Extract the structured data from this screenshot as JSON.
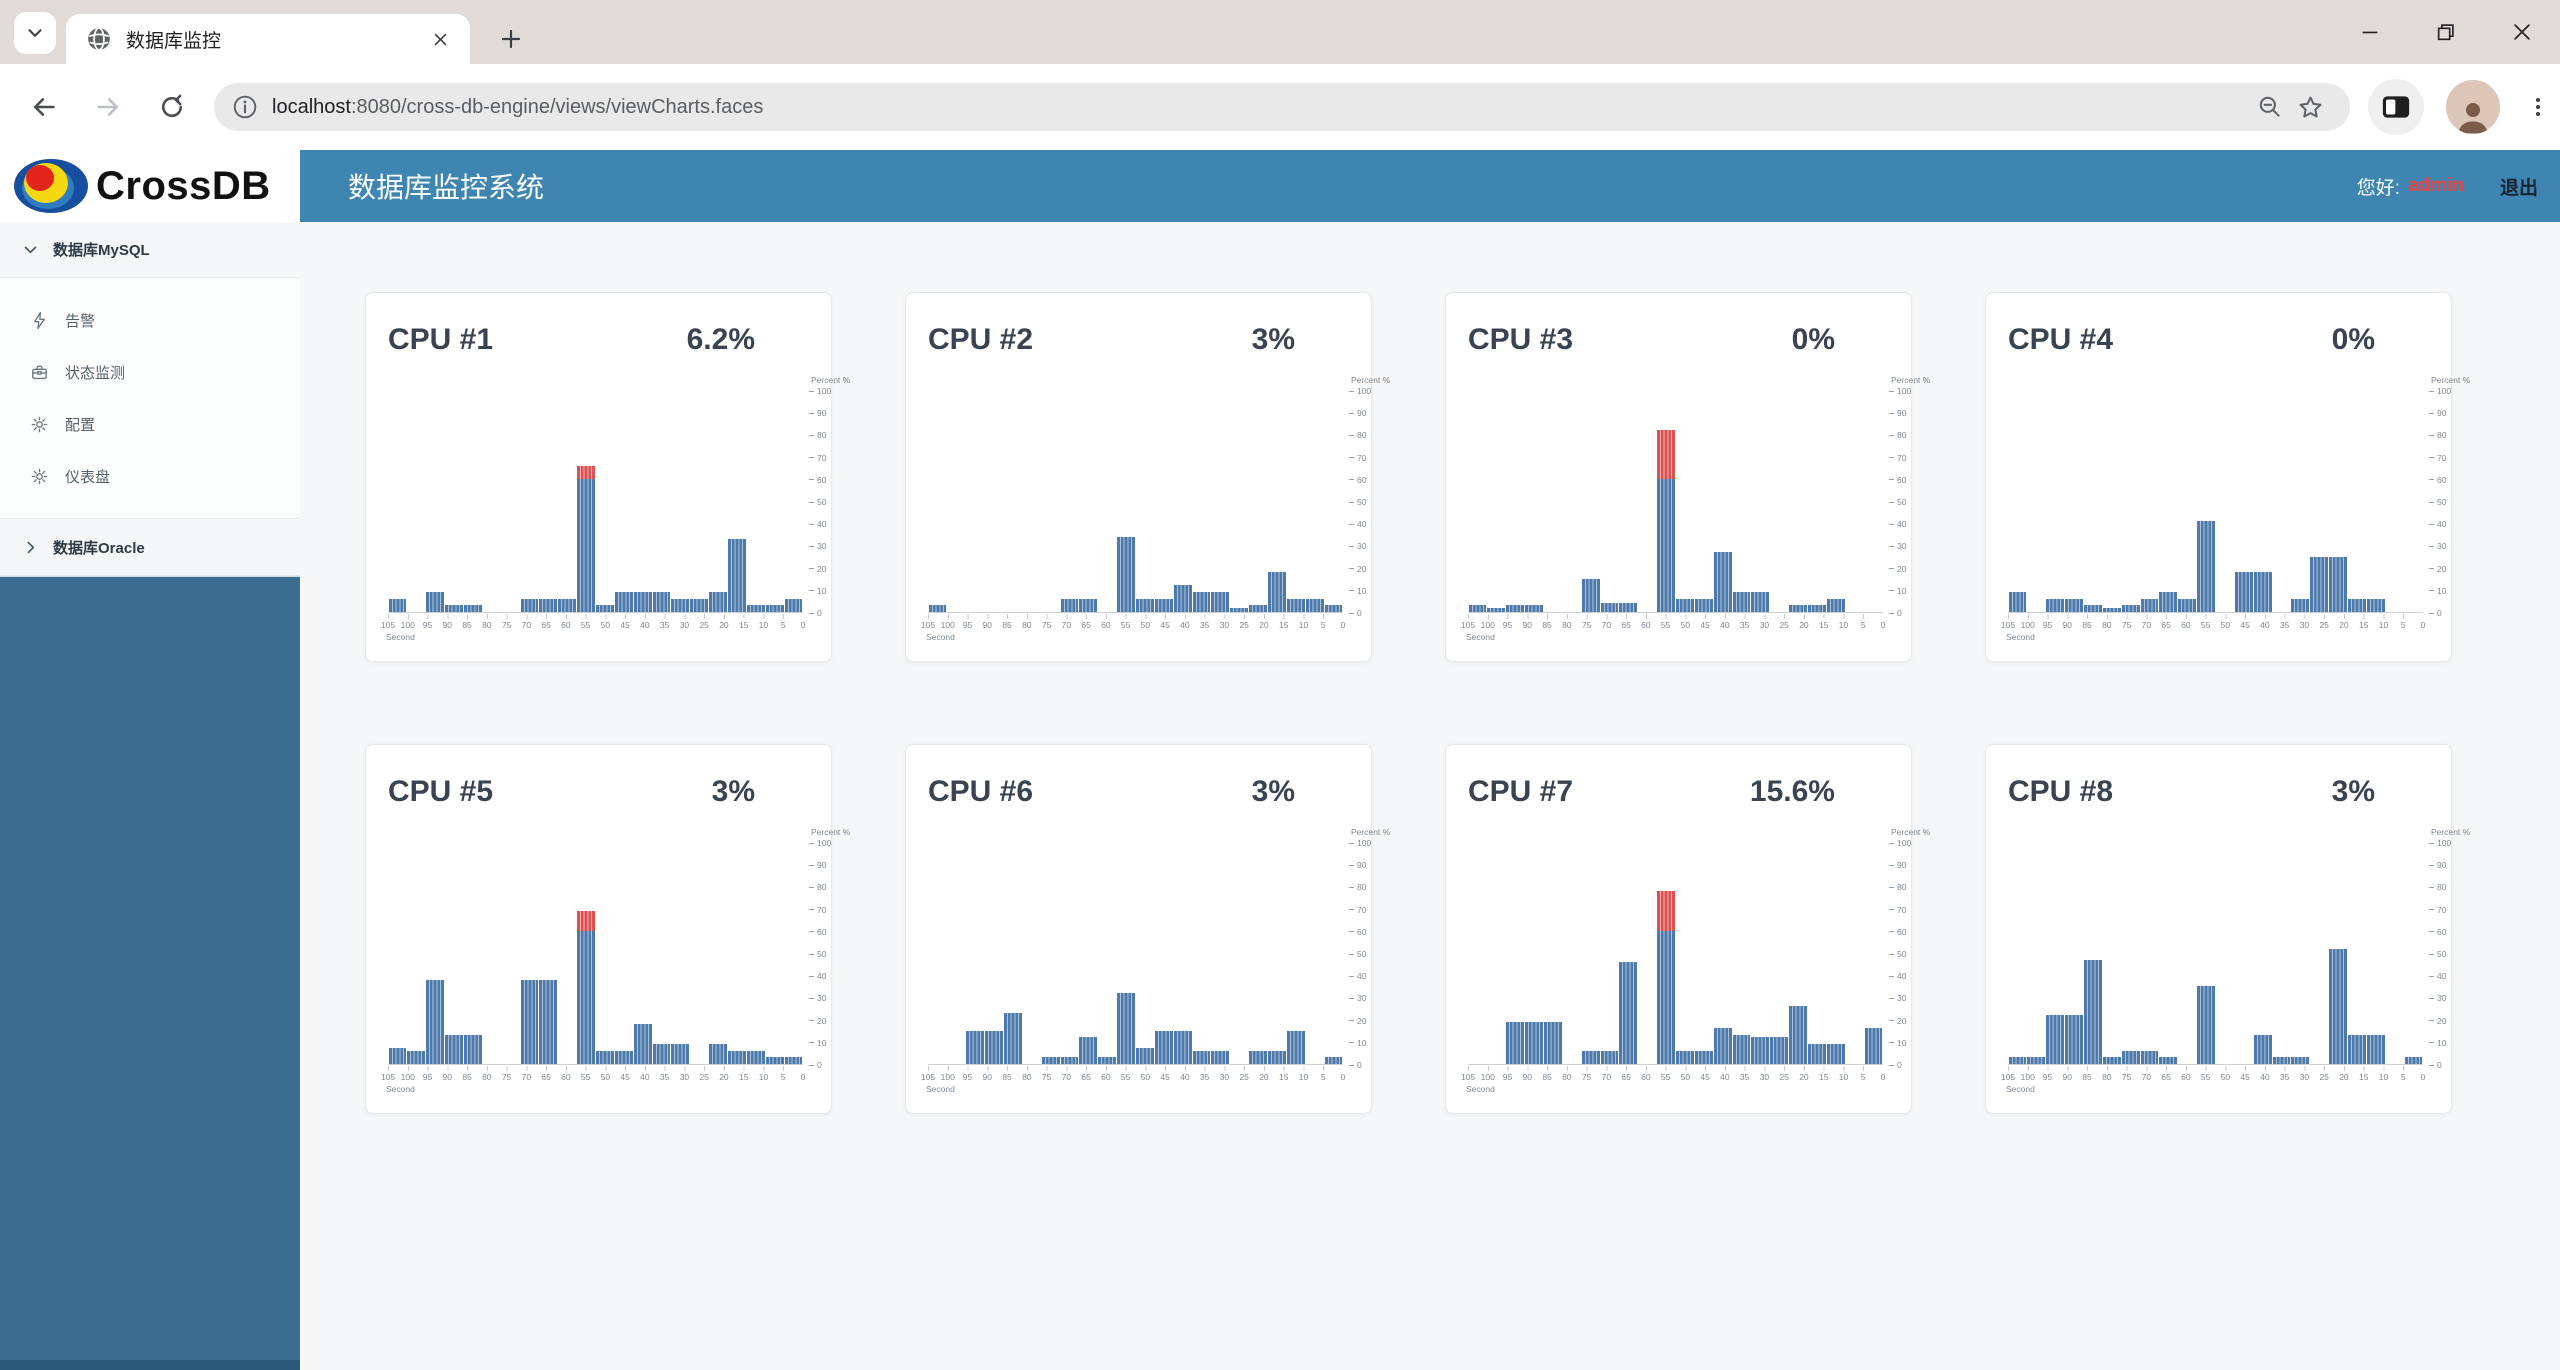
{
  "browser": {
    "tab_title": "数据库监控",
    "url_host": "localhost",
    "url_rest": ":8080/cross-db-engine/views/viewCharts.faces",
    "icons": {
      "tab_search": "chevron-down-icon",
      "tab_favicon": "globe-icon",
      "tab_close": "close-icon",
      "new_tab": "plus-icon",
      "window_controls": [
        "minimize-icon",
        "restore-icon",
        "close-icon"
      ],
      "toolbar": [
        "back-arrow-icon",
        "forward-arrow-icon",
        "reload-icon",
        "info-icon",
        "zoom-out-icon",
        "bookmark-star-icon",
        "side-panel-icon",
        "profile-avatar",
        "kebab-menu-icon"
      ]
    }
  },
  "header": {
    "brand": "CrossDB",
    "title": "数据库监控系统",
    "greeting_label": "您好:",
    "username": "admin",
    "logout_label": "退出",
    "header_color": "#3e85b2",
    "username_color": "#e8433f"
  },
  "sidebar": {
    "fill_color": "#3c6d90",
    "groups": [
      {
        "label": "数据库MySQL",
        "expanded": true,
        "icon": "chevron-down-icon",
        "items": [
          {
            "label": "告警",
            "icon": "alert-lightning-icon"
          },
          {
            "label": "状态监测",
            "icon": "status-briefcase-icon"
          },
          {
            "label": "配置",
            "icon": "config-gear-icon"
          },
          {
            "label": "仪表盘",
            "icon": "dashboard-gear-icon"
          }
        ]
      },
      {
        "label": "数据库Oracle",
        "expanded": false,
        "icon": "chevron-right-icon",
        "items": []
      }
    ]
  },
  "chart_data": [
    {
      "type": "bar",
      "title": "CPU #1",
      "current": "6.2%",
      "xlabel": "Second",
      "ylabel": "Percent %",
      "x_first": 105,
      "x_last": 0,
      "x_step": 5,
      "ylim": [
        0,
        100
      ],
      "y_tick_step": 10,
      "overload_threshold": 60,
      "bar_color": "#4d79ab",
      "overload_color": "#dc5252",
      "values": [
        6,
        0,
        9,
        3,
        3,
        0,
        0,
        6,
        6,
        6,
        66,
        3,
        9,
        9,
        9,
        6,
        6,
        9,
        33,
        3,
        3,
        6
      ]
    },
    {
      "type": "bar",
      "title": "CPU #2",
      "current": "3%",
      "xlabel": "Second",
      "ylabel": "Percent %",
      "x_first": 105,
      "x_last": 0,
      "x_step": 5,
      "ylim": [
        0,
        100
      ],
      "y_tick_step": 10,
      "overload_threshold": 60,
      "bar_color": "#4d79ab",
      "overload_color": "#dc5252",
      "values": [
        3,
        0,
        0,
        0,
        0,
        0,
        0,
        6,
        6,
        0,
        34,
        6,
        6,
        12,
        9,
        9,
        2,
        3,
        18,
        6,
        6,
        3
      ]
    },
    {
      "type": "bar",
      "title": "CPU #3",
      "current": "0%",
      "xlabel": "Second",
      "ylabel": "Percent %",
      "x_first": 105,
      "x_last": 0,
      "x_step": 5,
      "ylim": [
        0,
        100
      ],
      "y_tick_step": 10,
      "overload_threshold": 60,
      "bar_color": "#4d79ab",
      "overload_color": "#dc5252",
      "values": [
        3,
        2,
        3,
        3,
        0,
        0,
        15,
        4,
        4,
        0,
        82,
        6,
        6,
        27,
        9,
        9,
        0,
        3,
        3,
        6,
        0,
        0
      ]
    },
    {
      "type": "bar",
      "title": "CPU #4",
      "current": "0%",
      "xlabel": "Second",
      "ylabel": "Percent %",
      "x_first": 105,
      "x_last": 0,
      "x_step": 5,
      "ylim": [
        0,
        100
      ],
      "y_tick_step": 10,
      "overload_threshold": 60,
      "bar_color": "#4d79ab",
      "overload_color": "#dc5252",
      "values": [
        9,
        0,
        6,
        6,
        3,
        2,
        3,
        6,
        9,
        6,
        41,
        0,
        18,
        18,
        0,
        6,
        25,
        25,
        6,
        6,
        0,
        0
      ]
    },
    {
      "type": "bar",
      "title": "CPU #5",
      "current": "3%",
      "xlabel": "Second",
      "ylabel": "Percent %",
      "x_first": 105,
      "x_last": 0,
      "x_step": 5,
      "ylim": [
        0,
        100
      ],
      "y_tick_step": 10,
      "overload_threshold": 60,
      "bar_color": "#4d79ab",
      "overload_color": "#dc5252",
      "values": [
        7,
        6,
        38,
        13,
        13,
        0,
        0,
        38,
        38,
        0,
        69,
        6,
        6,
        18,
        9,
        9,
        0,
        9,
        6,
        6,
        3,
        3
      ]
    },
    {
      "type": "bar",
      "title": "CPU #6",
      "current": "3%",
      "xlabel": "Second",
      "ylabel": "Percent %",
      "x_first": 105,
      "x_last": 0,
      "x_step": 5,
      "ylim": [
        0,
        100
      ],
      "y_tick_step": 10,
      "overload_threshold": 60,
      "bar_color": "#4d79ab",
      "overload_color": "#dc5252",
      "values": [
        0,
        0,
        15,
        15,
        23,
        0,
        3,
        3,
        12,
        3,
        32,
        7,
        15,
        15,
        6,
        6,
        0,
        6,
        6,
        15,
        0,
        3
      ]
    },
    {
      "type": "bar",
      "title": "CPU #7",
      "current": "15.6%",
      "xlabel": "Second",
      "ylabel": "Percent %",
      "x_first": 105,
      "x_last": 0,
      "x_step": 5,
      "ylim": [
        0,
        100
      ],
      "y_tick_step": 10,
      "overload_threshold": 60,
      "bar_color": "#4d79ab",
      "overload_color": "#dc5252",
      "values": [
        0,
        0,
        19,
        19,
        19,
        0,
        6,
        6,
        46,
        0,
        78,
        6,
        6,
        16,
        13,
        12,
        12,
        26,
        9,
        9,
        0,
        16
      ]
    },
    {
      "type": "bar",
      "title": "CPU #8",
      "current": "3%",
      "xlabel": "Second",
      "ylabel": "Percent %",
      "x_first": 105,
      "x_last": 0,
      "x_step": 5,
      "ylim": [
        0,
        100
      ],
      "y_tick_step": 10,
      "overload_threshold": 60,
      "bar_color": "#4d79ab",
      "overload_color": "#dc5252",
      "values": [
        3,
        3,
        22,
        22,
        47,
        3,
        6,
        6,
        3,
        0,
        35,
        0,
        0,
        13,
        3,
        3,
        0,
        52,
        13,
        13,
        0,
        3
      ]
    }
  ]
}
